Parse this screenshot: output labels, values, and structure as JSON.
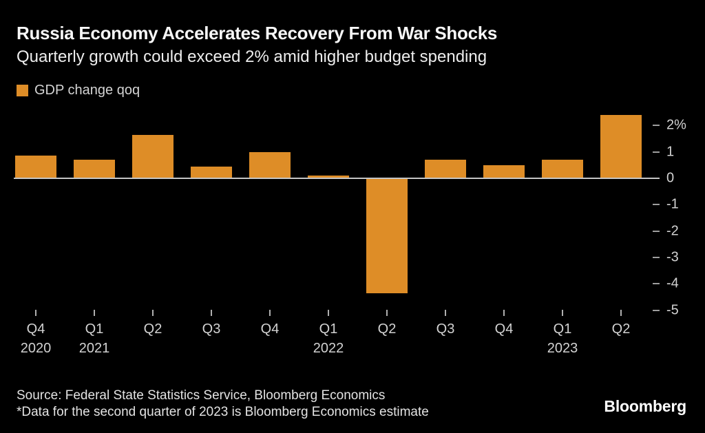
{
  "header": {
    "title": "Russia Economy Accelerates Recovery From War Shocks",
    "subtitle": "Quarterly growth could exceed 2% amid higher budget spending"
  },
  "legend": {
    "label": "GDP change qoq"
  },
  "chart_data": {
    "type": "bar",
    "title": "Russia Economy Accelerates Recovery From War Shocks",
    "subtitle": "Quarterly growth could exceed 2% amid higher budget spending",
    "series_name": "GDP change qoq",
    "categories": [
      "Q4 2020",
      "Q1 2021",
      "Q2 2021",
      "Q3 2021",
      "Q4 2021",
      "Q1 2022",
      "Q2 2022",
      "Q3 2022",
      "Q4 2022",
      "Q1 2023",
      "Q2 2023"
    ],
    "values": [
      0.85,
      0.7,
      1.65,
      0.45,
      1.0,
      0.1,
      -4.35,
      0.7,
      0.5,
      0.7,
      2.4
    ],
    "unit": "% qoq",
    "x_tick_labels": [
      "Q4",
      "Q1",
      "Q2",
      "Q3",
      "Q4",
      "Q1",
      "Q2",
      "Q3",
      "Q4",
      "Q1",
      "Q2"
    ],
    "x_year_labels": [
      {
        "index": 0,
        "label": "2020"
      },
      {
        "index": 1,
        "label": "2021"
      },
      {
        "index": 5,
        "label": "2022"
      },
      {
        "index": 9,
        "label": "2023"
      }
    ],
    "y_ticks": [
      {
        "value": 2,
        "label": "2%"
      },
      {
        "value": 1,
        "label": "1"
      },
      {
        "value": 0,
        "label": "0"
      },
      {
        "value": -1,
        "label": "-1"
      },
      {
        "value": -2,
        "label": "-2"
      },
      {
        "value": -3,
        "label": "-3"
      },
      {
        "value": -4,
        "label": "-4"
      },
      {
        "value": -5,
        "label": "-5"
      }
    ],
    "ylim": [
      -5,
      2.6
    ],
    "grid": false,
    "legend_position": "top-left",
    "y_axis_position": "right"
  },
  "colors": {
    "background": "#000000",
    "bar": "#DE8D27",
    "axis": "#C6C6C6",
    "title_text": "#F7F7F7",
    "text": "#D2D2D2"
  },
  "footer": {
    "source": "Source: Federal State Statistics Service, Bloomberg Economics",
    "note": "*Data for the second quarter of 2023 is Bloomberg Economics estimate",
    "logo": "Bloomberg"
  }
}
